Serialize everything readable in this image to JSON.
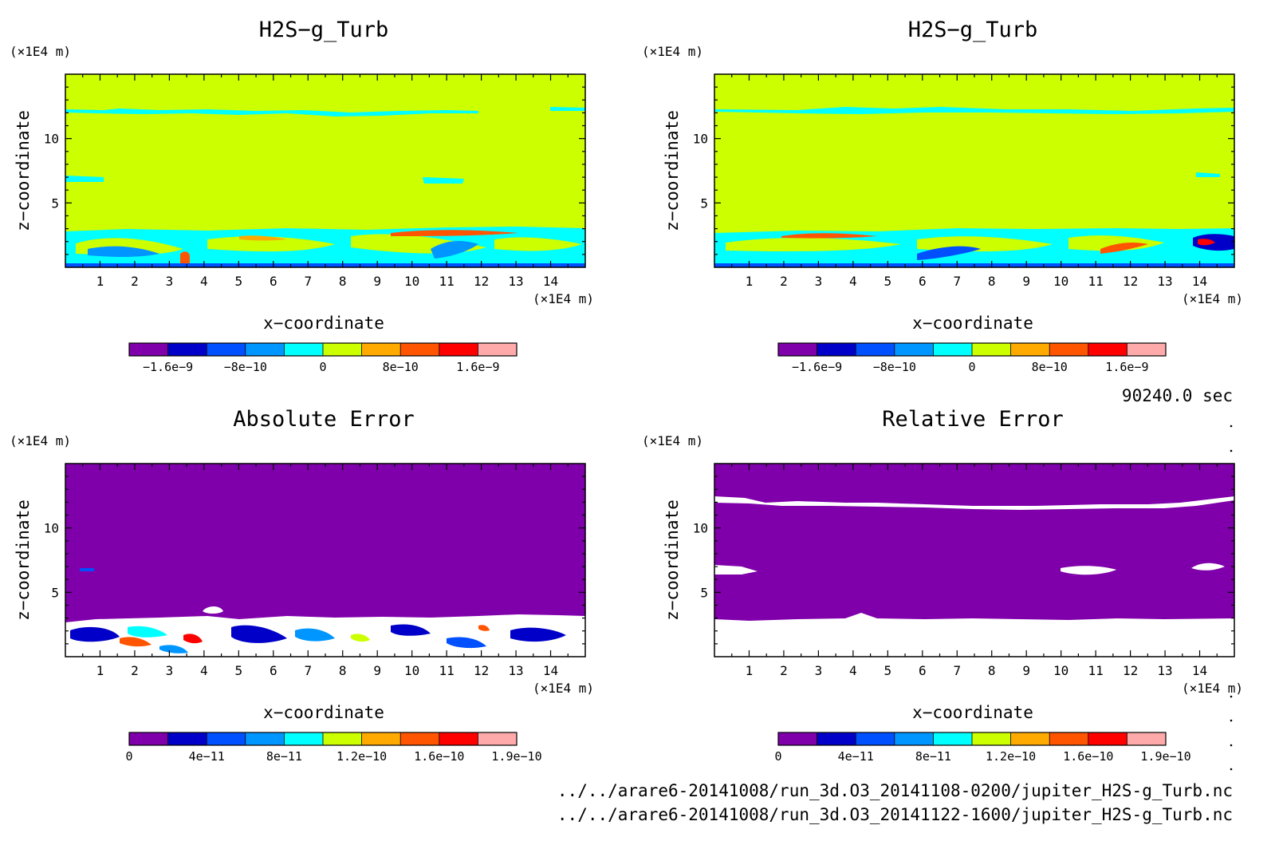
{
  "colors": {
    "background": "#ffffff",
    "levels_signed": [
      "#7f00aa",
      "#0000c8",
      "#0050ff",
      "#0096ff",
      "#00ffff",
      "#ccff00",
      "#ffaa00",
      "#ff5500",
      "#ff0000",
      "#ffaaaa"
    ],
    "levels_error": [
      "#7f00aa",
      "#0000c8",
      "#0050ff",
      "#0096ff",
      "#00ffff",
      "#ccff00",
      "#ffaa00",
      "#ff5500",
      "#ff0000",
      "#ffaaaa"
    ]
  },
  "time_label": "90240.0 sec",
  "footer": {
    "file1": "../../arare6-20141008/run_3d.O3_20141108-0200/jupiter_H2S-g_Turb.nc",
    "file2": "../../arare6-20141008/run_3d.O3_20141122-1600/jupiter_H2S-g_Turb.nc"
  },
  "chart_data": [
    {
      "type": "heatmap",
      "title": "H2S−g_Turb",
      "xlabel": "x−coordinate",
      "ylabel": "z−coordinate",
      "xunit": "(×1E4 m)",
      "yunit": "(×1E4 m)",
      "xlim": [
        0,
        15
      ],
      "ylim": [
        0,
        15
      ],
      "xticks": [
        "1",
        "2",
        "3",
        "4",
        "5",
        "6",
        "7",
        "8",
        "9",
        "10",
        "11",
        "12",
        "13",
        "14"
      ],
      "yticks": [
        "5",
        "10"
      ],
      "dominant_value": "0",
      "colorbar": {
        "labels": [
          "−1.6e−9",
          "−8e−10",
          "0",
          "8e−10",
          "1.6e−9"
        ]
      }
    },
    {
      "type": "heatmap",
      "title": "H2S−g_Turb",
      "xlabel": "x−coordinate",
      "ylabel": "z−coordinate",
      "xunit": "(×1E4 m)",
      "yunit": "(×1E4 m)",
      "xlim": [
        0,
        15
      ],
      "ylim": [
        0,
        15
      ],
      "xticks": [
        "1",
        "2",
        "3",
        "4",
        "5",
        "6",
        "7",
        "8",
        "9",
        "10",
        "11",
        "12",
        "13",
        "14"
      ],
      "yticks": [
        "5",
        "10"
      ],
      "dominant_value": "0",
      "colorbar": {
        "labels": [
          "−1.6e−9",
          "−8e−10",
          "0",
          "8e−10",
          "1.6e−9"
        ]
      }
    },
    {
      "type": "heatmap",
      "title": "Absolute Error",
      "xlabel": "x−coordinate",
      "ylabel": "z−coordinate",
      "xunit": "(×1E4 m)",
      "yunit": "(×1E4 m)",
      "xlim": [
        0,
        15
      ],
      "ylim": [
        0,
        15
      ],
      "xticks": [
        "1",
        "2",
        "3",
        "4",
        "5",
        "6",
        "7",
        "8",
        "9",
        "10",
        "11",
        "12",
        "13",
        "14"
      ],
      "yticks": [
        "5",
        "10"
      ],
      "dominant_value": "0",
      "colorbar": {
        "labels": [
          "0",
          "4e−11",
          "8e−11",
          "1.2e−10",
          "1.6e−10",
          "1.9e−10"
        ]
      }
    },
    {
      "type": "heatmap",
      "title": "Relative Error",
      "xlabel": "x−coordinate",
      "ylabel": "z−coordinate",
      "xunit": "(×1E4 m)",
      "yunit": "(×1E4 m)",
      "xlim": [
        0,
        15
      ],
      "ylim": [
        0,
        15
      ],
      "xticks": [
        "1",
        "2",
        "3",
        "4",
        "5",
        "6",
        "7",
        "8",
        "9",
        "10",
        "11",
        "12",
        "13",
        "14"
      ],
      "yticks": [
        "5",
        "10"
      ],
      "dominant_value": "0",
      "colorbar": {
        "labels": [
          "0",
          "4e−11",
          "8e−11",
          "1.2e−10",
          "1.6e−10",
          "1.9e−10"
        ]
      }
    }
  ]
}
